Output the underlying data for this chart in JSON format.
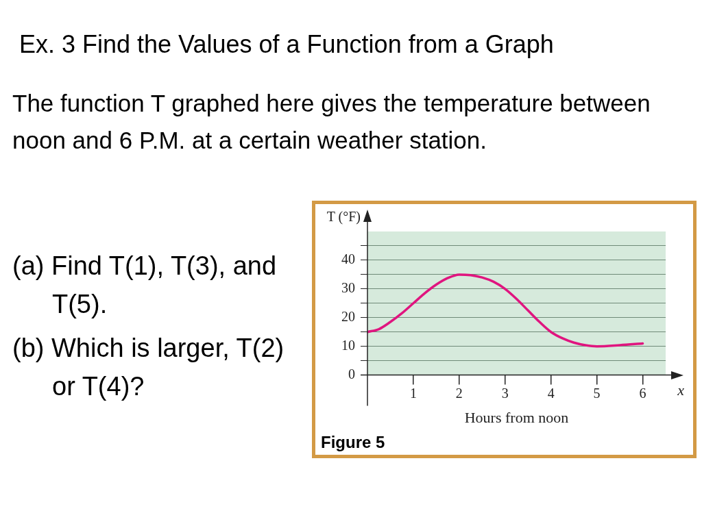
{
  "chart_data": {
    "type": "line",
    "title": "Ex. 3  Find the Values of a Function from a Graph",
    "subtitle": "The function T graphed here gives the temperature between noon and 6 P.M. at a certain weather station.",
    "xlabel": "Hours from noon",
    "ylabel": "T (°F)",
    "annotations": [
      "(a) Find T(1), T(3), and T(5).",
      "(b) Which is larger, T(2) or T(4)?",
      "x",
      "Figure 5"
    ],
    "x": [
      0,
      0.25,
      0.5,
      0.75,
      1,
      1.25,
      1.5,
      1.75,
      2,
      2.25,
      2.5,
      2.75,
      3,
      3.25,
      3.5,
      3.75,
      4,
      4.25,
      4.5,
      4.75,
      5,
      5.5,
      6
    ],
    "series": [
      {
        "color": "#e0157f",
        "values": [
          15,
          16,
          18.5,
          21.5,
          25,
          28.5,
          31.5,
          33.8,
          35,
          34.8,
          34,
          32.5,
          30,
          26.5,
          22.5,
          18.5,
          15,
          12.8,
          11.3,
          10.4,
          10,
          10.4,
          11
        ]
      }
    ],
    "xlim": [
      0,
      6.5
    ],
    "ylim": [
      0,
      50
    ],
    "xticks": [
      1,
      2,
      3,
      4,
      5,
      6
    ],
    "yticks": [
      {
        "value": 0,
        "label": "0"
      },
      {
        "value": 5,
        "label": null
      },
      10,
      {
        "value": 15,
        "label": null
      },
      20,
      {
        "value": 25,
        "label": null
      },
      30,
      {
        "value": 35,
        "label": null
      },
      40,
      {
        "value": 45,
        "label": null
      }
    ],
    "grid": "y",
    "legend": false,
    "marker": "none",
    "line_style": "solid"
  }
}
